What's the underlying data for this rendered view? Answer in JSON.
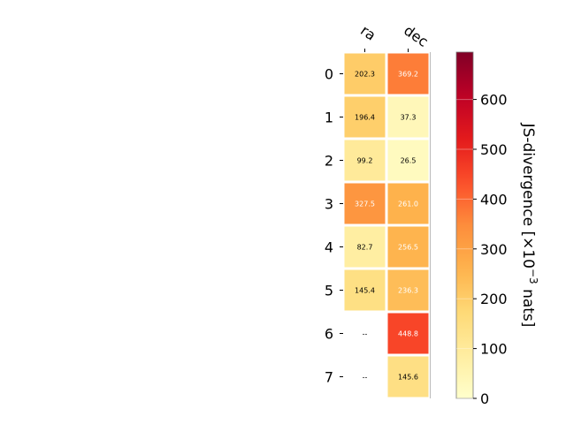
{
  "chart_data": {
    "type": "heatmap",
    "columns": [
      "ra",
      "dec"
    ],
    "rows": [
      "0",
      "1",
      "2",
      "3",
      "4",
      "5",
      "6",
      "7"
    ],
    "values": [
      [
        202.3,
        369.2
      ],
      [
        196.4,
        37.3
      ],
      [
        99.2,
        26.5
      ],
      [
        327.5,
        261.0
      ],
      [
        82.7,
        256.5
      ],
      [
        145.4,
        236.3
      ],
      [
        null,
        448.8
      ],
      [
        null,
        145.6
      ]
    ],
    "cell_labels": [
      [
        "202.3",
        "369.2"
      ],
      [
        "196.4",
        "37.3"
      ],
      [
        "99.2",
        "26.5"
      ],
      [
        "327.5",
        "261.0"
      ],
      [
        "82.7",
        "256.5"
      ],
      [
        "145.4",
        "236.3"
      ],
      [
        "--",
        "448.8"
      ],
      [
        "--",
        "145.6"
      ]
    ],
    "colorbar": {
      "label_html": "JS-divergence [×10",
      "label_exp": "−3",
      "label_tail": " nats]",
      "range": [
        0,
        695
      ],
      "ticks": [
        0,
        100,
        200,
        300,
        400,
        500,
        600
      ],
      "tick_labels": [
        "0",
        "100",
        "200",
        "300",
        "400",
        "500",
        "600"
      ],
      "colormap": "YlOrRd"
    }
  }
}
